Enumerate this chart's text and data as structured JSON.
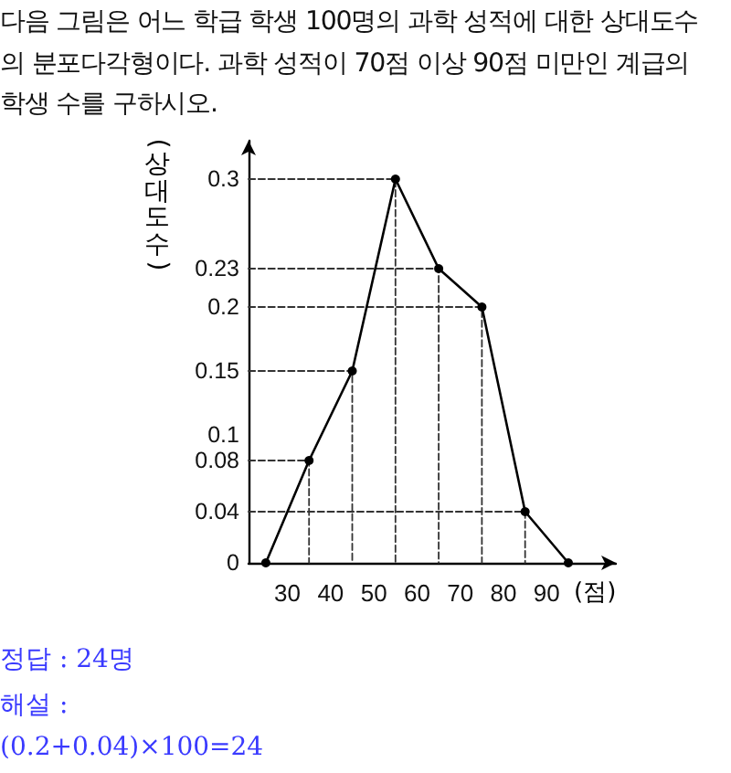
{
  "chart_data": {
    "type": "line",
    "title": "다음 그림은 어느 학급 학생 100명의 과학 성적에 대한 상대도수의 분포다각형이다. 과학 성적이 70점 이상 90점 미만인 계급의 학생 수를 구하시오.",
    "xlabel": "(점)",
    "ylabel": "(상대도수)",
    "series": [
      {
        "color": "#000000",
        "x": [
          25,
          35,
          45,
          55,
          65,
          75,
          85,
          95
        ],
        "values": [
          0,
          0.08,
          0.15,
          0.3,
          0.23,
          0.2,
          0.04,
          0
        ]
      },
      {
        "color": "#333333",
        "x": [
          21,
          35,
          35
        ],
        "values": [
          0.08,
          0.08,
          0
        ],
        "line_style": "dashed",
        "marker": "none"
      },
      {
        "color": "#333333",
        "x": [
          21,
          45,
          45
        ],
        "values": [
          0.15,
          0.15,
          0
        ],
        "line_style": "dashed",
        "marker": "none"
      },
      {
        "color": "#333333",
        "x": [
          21,
          55,
          55
        ],
        "values": [
          0.3,
          0.3,
          0
        ],
        "line_style": "dashed",
        "marker": "none"
      },
      {
        "color": "#333333",
        "x": [
          21,
          65,
          65
        ],
        "values": [
          0.23,
          0.23,
          0
        ],
        "line_style": "dashed",
        "marker": "none"
      },
      {
        "color": "#333333",
        "x": [
          21,
          75,
          75
        ],
        "values": [
          0.2,
          0.2,
          0
        ],
        "line_style": "dashed",
        "marker": "none"
      },
      {
        "color": "#333333",
        "x": [
          21,
          85,
          85
        ],
        "values": [
          0.04,
          0.04,
          0
        ],
        "line_style": "dashed",
        "marker": "none"
      }
    ],
    "xlim": [
      21,
      106
    ],
    "xticks": [
      30,
      40,
      50,
      60,
      70,
      80,
      90
    ],
    "ylim": [
      0,
      0.33
    ],
    "yticks": [
      0,
      0.04,
      0.08,
      0.1,
      0.15,
      0.2,
      0.23,
      0.3
    ],
    "marker": "circle",
    "line_style": "solid",
    "annotations": [
      "정답 : 24명",
      "해설 :",
      "(0.2+0.04)×100=24"
    ]
  }
}
